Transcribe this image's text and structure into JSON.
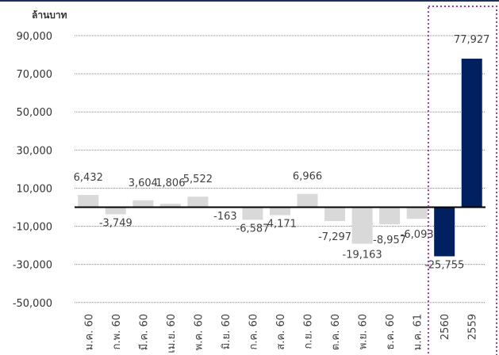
{
  "chart_data": {
    "type": "bar",
    "ylabel": "ล้านบาท",
    "ylim": [
      -50000,
      90000
    ],
    "yticks": [
      90000,
      70000,
      50000,
      30000,
      10000,
      -10000,
      -30000,
      -50000
    ],
    "ytick_labels": [
      "90,000",
      "70,000",
      "50,000",
      "30,000",
      "10,000",
      "-10,000",
      "-30,000",
      "-50,000"
    ],
    "grid": true,
    "categories": [
      "ม.ค. 60",
      "ก.พ. 60",
      "มี.ค. 60",
      "เม.ย. 60",
      "พ.ค. 60",
      "มิ.ย. 60",
      "ก.ค. 60",
      "ส.ค. 60",
      "ก.ย. 60",
      "ต.ค. 60",
      "พ.ย. 60",
      "ธ.ค. 60",
      "ม.ค. 61",
      "2560",
      "2559"
    ],
    "values": [
      6432,
      -3749,
      3604,
      1806,
      5522,
      -163,
      -6587,
      -4171,
      6966,
      -7297,
      -19163,
      -8957,
      -6093,
      -25755,
      77927
    ],
    "value_labels": [
      "6,432",
      "-3,749",
      "3,604",
      "1,806",
      "5,522",
      "-163",
      "-6,587",
      "-4,171",
      "6,966",
      "-7,297",
      "-19,163",
      "-8,957",
      "-6,093",
      "-25,755",
      "77,927"
    ],
    "highlight": [
      "2560",
      "2559"
    ],
    "colors": {
      "monthly": "#d9d9d9",
      "annual": "#002060",
      "box": "#993399",
      "axis": "#000000",
      "grid": "#888888"
    }
  }
}
